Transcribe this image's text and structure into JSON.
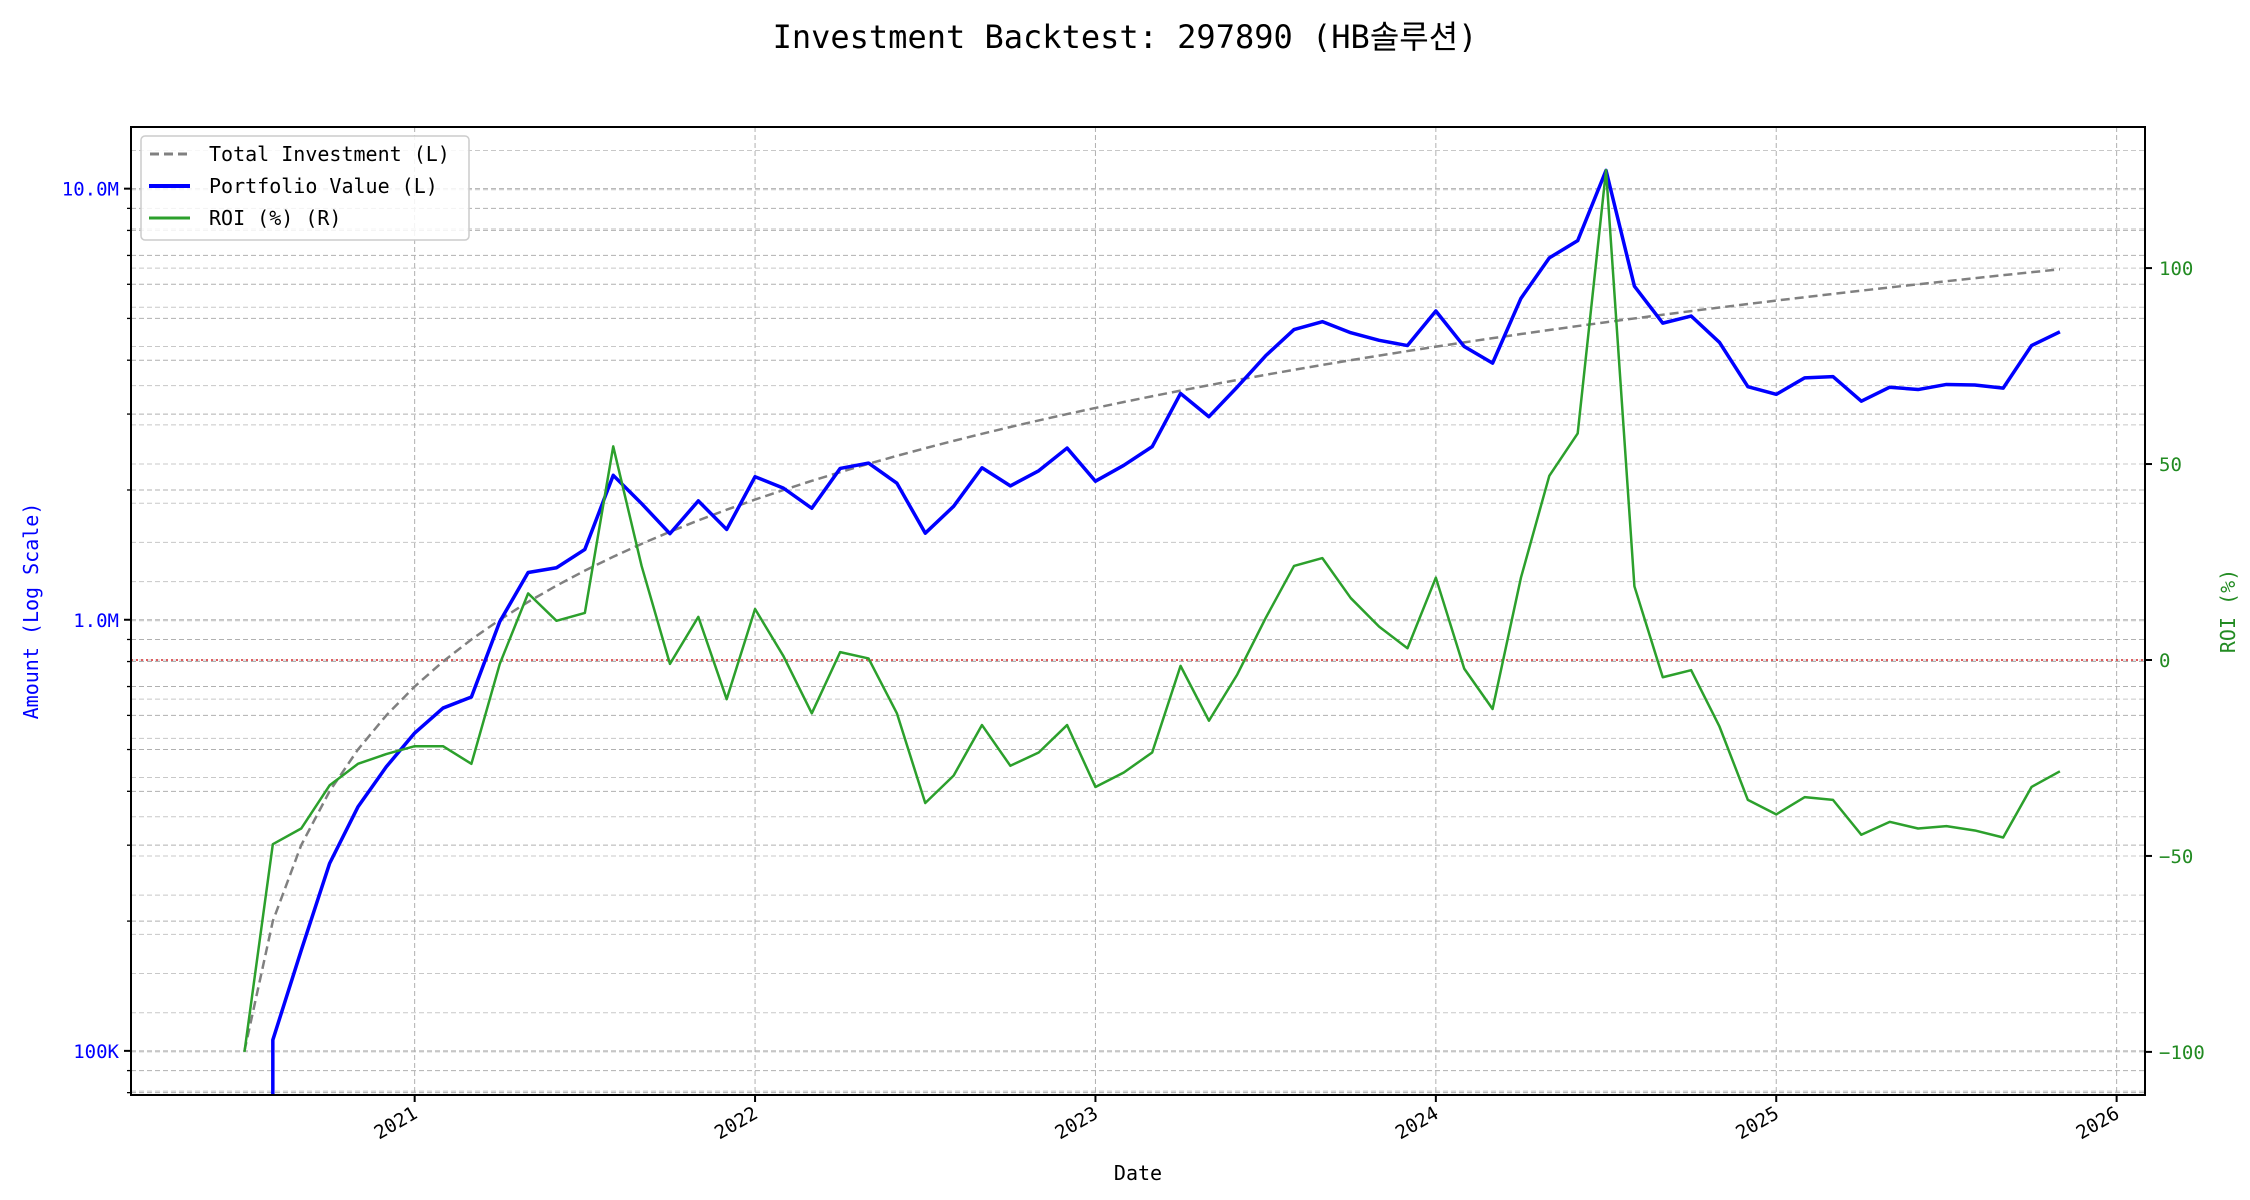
{
  "chart_data": {
    "type": "line",
    "title": "Investment Backtest: 297890 (HB솔루션)",
    "xlabel": "Date",
    "ylabel_left": "Amount (Log Scale)",
    "ylabel_right": "ROI (%)",
    "left_scale": "log",
    "left_ylim": [
      79000,
      13900000
    ],
    "right_ylim": [
      -111,
      136
    ],
    "xlim": [
      "2020-03",
      "2026-02"
    ],
    "grid": true,
    "legend_position": "top-left",
    "x_ticks": [
      "2021",
      "2022",
      "2023",
      "2024",
      "2025",
      "2026"
    ],
    "left_ticks": [
      {
        "value": 100000,
        "label": "100K"
      },
      {
        "value": 1000000,
        "label": "1.0M"
      },
      {
        "value": 10000000,
        "label": "10.0M"
      }
    ],
    "right_ticks": [
      {
        "value": -100,
        "label": "−100"
      },
      {
        "value": -50,
        "label": "−50"
      },
      {
        "value": 0,
        "label": "0"
      },
      {
        "value": 50,
        "label": "50"
      },
      {
        "value": 100,
        "label": "100"
      }
    ],
    "reference_line": {
      "axis": "right",
      "value": 0,
      "color": "#d62728"
    },
    "x": [
      "2020-07",
      "2020-08",
      "2020-09",
      "2020-10",
      "2020-11",
      "2020-12",
      "2021-01",
      "2021-02",
      "2021-03",
      "2021-04",
      "2021-05",
      "2021-06",
      "2021-07",
      "2021-08",
      "2021-09",
      "2021-10",
      "2021-11",
      "2021-12",
      "2022-01",
      "2022-02",
      "2022-03",
      "2022-04",
      "2022-05",
      "2022-06",
      "2022-07",
      "2022-08",
      "2022-09",
      "2022-10",
      "2022-11",
      "2022-12",
      "2023-01",
      "2023-02",
      "2023-03",
      "2023-04",
      "2023-05",
      "2023-06",
      "2023-07",
      "2023-08",
      "2023-09",
      "2023-10",
      "2023-11",
      "2023-12",
      "2024-01",
      "2024-02",
      "2024-03",
      "2024-04",
      "2024-05",
      "2024-06",
      "2024-07",
      "2024-08",
      "2024-09",
      "2024-10",
      "2024-11",
      "2024-12",
      "2025-01",
      "2025-02",
      "2025-03",
      "2025-04",
      "2025-05",
      "2025-06",
      "2025-07",
      "2025-08",
      "2025-09",
      "2025-10",
      "2025-11"
    ],
    "series": [
      {
        "name": "Total Investment (L)",
        "axis": "left",
        "color": "#808080",
        "style": "dashed",
        "values": [
          100000,
          200000,
          300000,
          400000,
          500000,
          600000,
          700000,
          800000,
          900000,
          1000000,
          1100000,
          1200000,
          1300000,
          1400000,
          1500000,
          1600000,
          1700000,
          1800000,
          1900000,
          2000000,
          2100000,
          2200000,
          2300000,
          2400000,
          2500000,
          2600000,
          2700000,
          2800000,
          2900000,
          3000000,
          3100000,
          3200000,
          3300000,
          3400000,
          3500000,
          3600000,
          3700000,
          3800000,
          3900000,
          4000000,
          4100000,
          4200000,
          4300000,
          4400000,
          4500000,
          4600000,
          4700000,
          4800000,
          4900000,
          5000000,
          5100000,
          5200000,
          5300000,
          5400000,
          5500000,
          5600000,
          5700000,
          5800000,
          5900000,
          6000000,
          6100000,
          6200000,
          6300000,
          6400000,
          6500000
        ]
      },
      {
        "name": "Portfolio Value (L)",
        "axis": "left",
        "color": "#0000ff",
        "style": "solid",
        "values": [
          0,
          106000,
          171000,
          272000,
          368000,
          456000,
          546000,
          624000,
          662000,
          990000,
          1287000,
          1320000,
          1456000,
          2163000,
          1860000,
          1584000,
          1887000,
          1620000,
          2147000,
          2020000,
          1814000,
          2244000,
          2309000,
          2074000,
          1588000,
          1833000,
          2252000,
          2044000,
          2216000,
          2502000,
          2096000,
          2282000,
          2521000,
          3349000,
          2958000,
          3467000,
          4096000,
          4712000,
          4914000,
          4632000,
          4449000,
          4326000,
          5203000,
          4303000,
          3938000,
          5566000,
          6909000,
          7574000,
          11025000,
          5940000,
          4876000,
          5065000,
          4399000,
          3472000,
          3333000,
          3640000,
          3665000,
          3213000,
          3463000,
          3420000,
          3514000,
          3503000,
          3446000,
          4326000,
          4654000
        ]
      },
      {
        "name": "ROI (%) (R)",
        "axis": "right",
        "color": "#2ca02c",
        "style": "solid",
        "values": [
          -100,
          -47,
          -43,
          -32,
          -26.5,
          -24,
          -22,
          -22,
          -26.5,
          -1,
          17,
          10,
          12,
          54.5,
          24,
          -1,
          11,
          -10,
          13,
          1,
          -13.6,
          2,
          0.4,
          -13.6,
          -36.5,
          -29.5,
          -16.6,
          -27,
          -23.6,
          -16.6,
          -32.4,
          -28.7,
          -23.6,
          -1.5,
          -15.5,
          -3.7,
          10.7,
          24,
          26,
          15.8,
          8.5,
          3,
          21,
          -2.2,
          -12.5,
          21,
          47,
          57.8,
          125,
          18.8,
          -4.4,
          -2.6,
          -17,
          -35.7,
          -39.4,
          -35,
          -35.7,
          -44.6,
          -41.3,
          -43,
          -42.4,
          -43.5,
          -45.3,
          -32.4,
          -28.4
        ]
      }
    ]
  }
}
